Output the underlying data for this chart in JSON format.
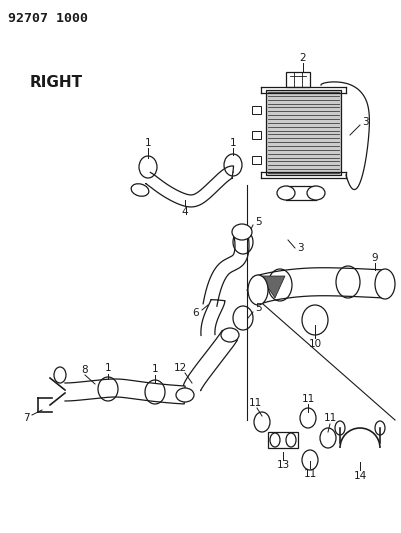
{
  "title_code": "92707 1000",
  "label_right": "RIGHT",
  "bg_color": "#ffffff",
  "line_color": "#1a1a1a",
  "fig_width": 4.01,
  "fig_height": 5.33,
  "dpi": 100
}
